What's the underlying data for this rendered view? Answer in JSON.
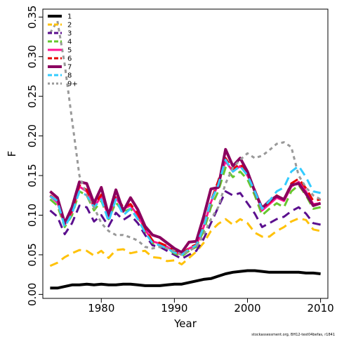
{
  "chart_data": {
    "type": "line",
    "xlabel": "Year",
    "ylabel": "F",
    "xlim": [
      1972,
      2011
    ],
    "ylim": [
      -0.005,
      0.36
    ],
    "xticks": [
      1980,
      1990,
      2000,
      2010
    ],
    "yticks": [
      0.0,
      0.05,
      0.1,
      0.15,
      0.2,
      0.25,
      0.3,
      0.35
    ],
    "ytick_labels": [
      "0.00",
      "0.05",
      "0.10",
      "0.15",
      "0.20",
      "0.25",
      "0.30",
      "0.35"
    ],
    "grid": false,
    "legend_position": "top-left",
    "footnote": "stockassessment.org, BH12-test04befas, r1841",
    "x": [
      1973,
      1974,
      1975,
      1976,
      1977,
      1978,
      1979,
      1980,
      1981,
      1982,
      1983,
      1984,
      1985,
      1986,
      1987,
      1988,
      1989,
      1990,
      1991,
      1992,
      1993,
      1994,
      1995,
      1996,
      1997,
      1998,
      1999,
      2000,
      2001,
      2002,
      2003,
      2004,
      2005,
      2006,
      2007,
      2008,
      2009,
      2010
    ],
    "series": [
      {
        "name": "1",
        "color": "#000000",
        "dash": "solid",
        "width": 4,
        "values": [
          0.008,
          0.008,
          0.01,
          0.012,
          0.012,
          0.013,
          0.012,
          0.013,
          0.012,
          0.012,
          0.013,
          0.013,
          0.012,
          0.011,
          0.011,
          0.011,
          0.012,
          0.013,
          0.013,
          0.015,
          0.017,
          0.019,
          0.02,
          0.023,
          0.026,
          0.028,
          0.029,
          0.03,
          0.03,
          0.029,
          0.028,
          0.028,
          0.028,
          0.028,
          0.028,
          0.027,
          0.027,
          0.026
        ]
      },
      {
        "name": "2",
        "color": "#ffc20a",
        "dash": "dashed",
        "width": 3,
        "values": [
          0.036,
          0.04,
          0.047,
          0.052,
          0.056,
          0.055,
          0.049,
          0.055,
          0.046,
          0.056,
          0.057,
          0.052,
          0.054,
          0.055,
          0.047,
          0.046,
          0.042,
          0.043,
          0.038,
          0.046,
          0.054,
          0.065,
          0.08,
          0.089,
          0.095,
          0.088,
          0.095,
          0.09,
          0.078,
          0.073,
          0.073,
          0.08,
          0.085,
          0.092,
          0.096,
          0.094,
          0.082,
          0.08
        ]
      },
      {
        "name": "3",
        "color": "#5b0f8e",
        "dash": "dashed",
        "width": 3,
        "values": [
          0.106,
          0.098,
          0.076,
          0.09,
          0.112,
          0.11,
          0.092,
          0.1,
          0.086,
          0.103,
          0.094,
          0.1,
          0.09,
          0.075,
          0.062,
          0.06,
          0.055,
          0.05,
          0.045,
          0.05,
          0.055,
          0.07,
          0.09,
          0.11,
          0.13,
          0.125,
          0.128,
          0.115,
          0.102,
          0.085,
          0.09,
          0.095,
          0.098,
          0.105,
          0.11,
          0.102,
          0.09,
          0.088
        ]
      },
      {
        "name": "4",
        "color": "#66c72e",
        "dash": "dashed",
        "width": 3,
        "values": [
          0.12,
          0.112,
          0.085,
          0.1,
          0.13,
          0.125,
          0.106,
          0.118,
          0.095,
          0.116,
          0.104,
          0.108,
          0.098,
          0.08,
          0.065,
          0.062,
          0.058,
          0.052,
          0.048,
          0.055,
          0.06,
          0.08,
          0.11,
          0.13,
          0.16,
          0.148,
          0.155,
          0.145,
          0.125,
          0.1,
          0.108,
          0.115,
          0.11,
          0.13,
          0.138,
          0.125,
          0.108,
          0.11
        ]
      },
      {
        "name": "5",
        "color": "#ff1493",
        "dash": "solid",
        "width": 3,
        "values": [
          0.124,
          0.116,
          0.088,
          0.104,
          0.136,
          0.13,
          0.11,
          0.124,
          0.098,
          0.122,
          0.108,
          0.112,
          0.1,
          0.082,
          0.067,
          0.064,
          0.06,
          0.054,
          0.05,
          0.058,
          0.062,
          0.085,
          0.116,
          0.14,
          0.168,
          0.155,
          0.162,
          0.15,
          0.13,
          0.106,
          0.114,
          0.122,
          0.118,
          0.136,
          0.142,
          0.13,
          0.114,
          0.115
        ]
      },
      {
        "name": "6",
        "color": "#e60000",
        "dash": "dashed",
        "width": 3,
        "values": [
          0.125,
          0.118,
          0.09,
          0.106,
          0.138,
          0.132,
          0.112,
          0.126,
          0.1,
          0.125,
          0.11,
          0.114,
          0.102,
          0.083,
          0.068,
          0.065,
          0.061,
          0.055,
          0.05,
          0.059,
          0.063,
          0.087,
          0.118,
          0.143,
          0.172,
          0.158,
          0.165,
          0.152,
          0.132,
          0.108,
          0.116,
          0.125,
          0.12,
          0.14,
          0.146,
          0.134,
          0.118,
          0.12
        ]
      },
      {
        "name": "7",
        "color": "#8b005f",
        "dash": "solid",
        "width": 4,
        "values": [
          0.13,
          0.122,
          0.09,
          0.11,
          0.142,
          0.14,
          0.115,
          0.135,
          0.1,
          0.132,
          0.105,
          0.122,
          0.107,
          0.086,
          0.075,
          0.072,
          0.065,
          0.058,
          0.053,
          0.066,
          0.067,
          0.098,
          0.133,
          0.135,
          0.183,
          0.162,
          0.172,
          0.155,
          0.13,
          0.109,
          0.118,
          0.124,
          0.12,
          0.138,
          0.14,
          0.127,
          0.112,
          0.115
        ]
      },
      {
        "name": "8",
        "color": "#33ccff",
        "dash": "dashed",
        "width": 3,
        "values": [
          0.124,
          0.118,
          0.085,
          0.102,
          0.13,
          0.125,
          0.11,
          0.12,
          0.092,
          0.12,
          0.1,
          0.108,
          0.095,
          0.078,
          0.065,
          0.062,
          0.058,
          0.053,
          0.05,
          0.057,
          0.062,
          0.085,
          0.118,
          0.138,
          0.17,
          0.155,
          0.162,
          0.15,
          0.13,
          0.108,
          0.118,
          0.13,
          0.135,
          0.155,
          0.162,
          0.148,
          0.13,
          0.128
        ]
      },
      {
        "name": "9+",
        "color": "#999999",
        "dash": "dotted",
        "width": 3,
        "values": [
          0.33,
          0.345,
          0.29,
          0.22,
          0.15,
          0.125,
          0.11,
          0.09,
          0.08,
          0.075,
          0.075,
          0.072,
          0.068,
          0.06,
          0.058,
          0.06,
          0.058,
          0.055,
          0.05,
          0.055,
          0.06,
          0.075,
          0.095,
          0.11,
          0.14,
          0.16,
          0.17,
          0.178,
          0.172,
          0.175,
          0.182,
          0.19,
          0.192,
          0.186,
          0.15,
          0.135,
          0.125,
          0.12
        ]
      }
    ]
  }
}
